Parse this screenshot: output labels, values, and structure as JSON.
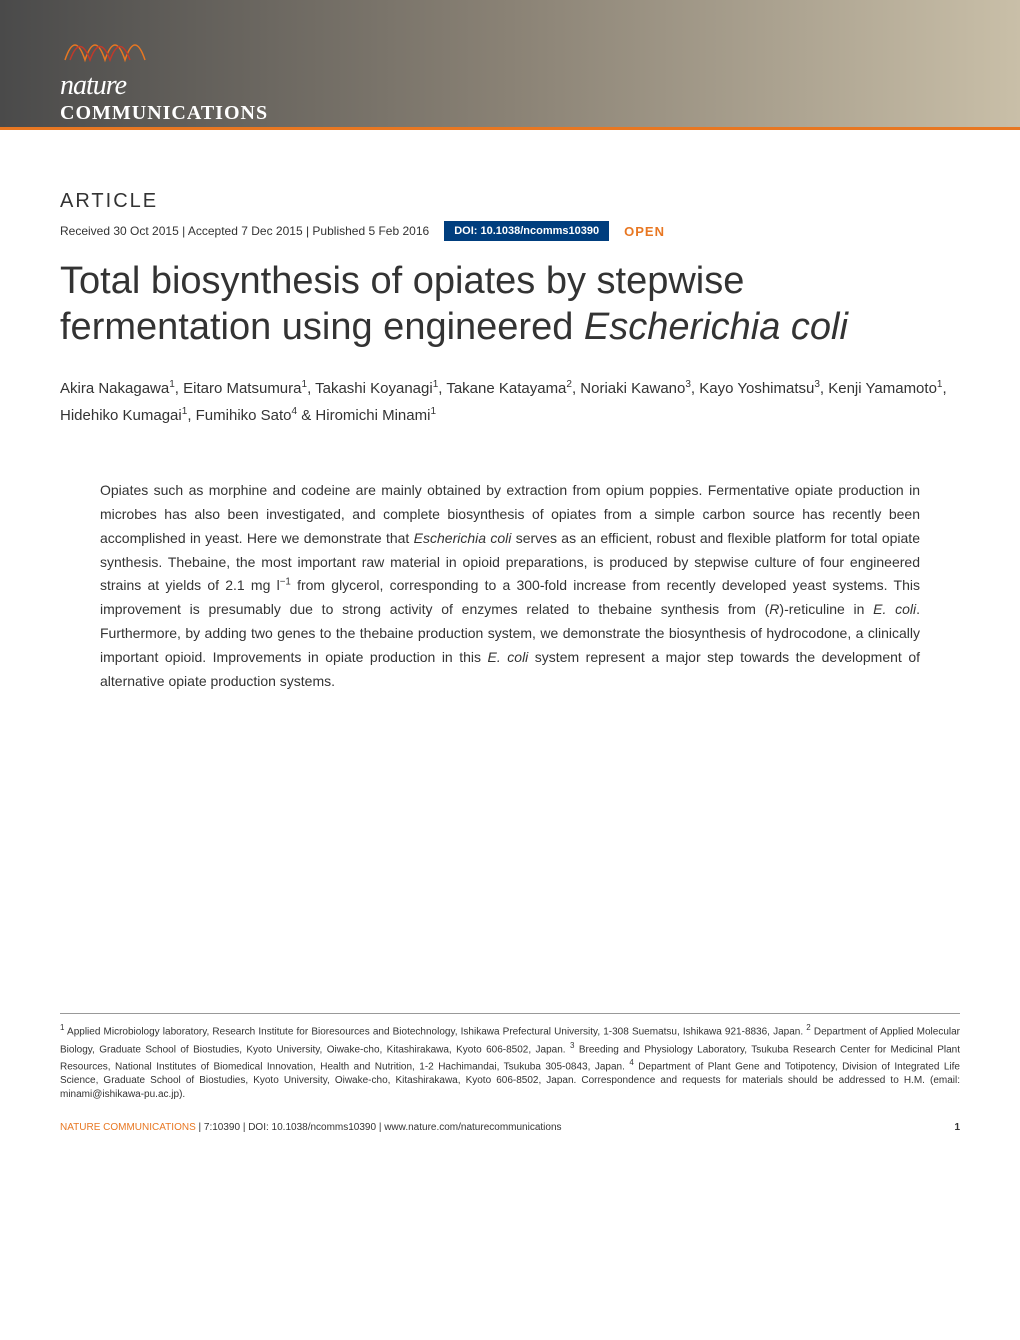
{
  "journal": {
    "logo_nature": "nature",
    "logo_communications": "COMMUNICATIONS"
  },
  "article": {
    "label": "ARTICLE",
    "received": "Received 30 Oct 2015",
    "accepted": "Accepted 7 Dec 2015",
    "published": "Published 5 Feb 2016",
    "doi": "DOI: 10.1038/ncomms10390",
    "open_label": "OPEN",
    "title_line1": "Total biosynthesis of opiates by stepwise",
    "title_line2_pre": "fermentation using engineered ",
    "title_line2_italic": "Escherichia coli",
    "authors_html": "Akira Nakagawa<sup>1</sup>, Eitaro Matsumura<sup>1</sup>, Takashi Koyanagi<sup>1</sup>, Takane Katayama<sup>2</sup>, Noriaki Kawano<sup>3</sup>, Kayo Yoshimatsu<sup>3</sup>, Kenji Yamamoto<sup>1</sup>, Hidehiko Kumagai<sup>1</sup>, Fumihiko Sato<sup>4</sup> & Hiromichi Minami<sup>1</sup>",
    "abstract_part1": "Opiates such as morphine and codeine are mainly obtained by extraction from opium poppies. Fermentative opiate production in microbes has also been investigated, and complete biosynthesis of opiates from a simple carbon source has recently been accomplished in yeast. Here we demonstrate that ",
    "abstract_italic1": "Escherichia coli",
    "abstract_part2": " serves as an efficient, robust and flexible platform for total opiate synthesis. Thebaine, the most important raw material in opioid preparations, is produced by stepwise culture of four engineered strains at yields of 2.1 mg l",
    "abstract_sup1": "−1",
    "abstract_part3": " from glycerol, corresponding to a 300-fold increase from recently developed yeast systems. This improvement is presumably due to strong activity of enzymes related to thebaine synthesis from (",
    "abstract_italic2": "R",
    "abstract_part4": ")-reticuline in ",
    "abstract_italic3": "E. coli",
    "abstract_part5": ". Furthermore, by adding two genes to the thebaine production system, we demonstrate the biosynthesis of hydrocodone, a clinically important opioid. Improvements in opiate production in this ",
    "abstract_italic4": "E. coli",
    "abstract_part6": " system represent a major step towards the development of alternative opiate production systems.",
    "affiliations_html": "<sup>1</sup> Applied Microbiology laboratory, Research Institute for Bioresources and Biotechnology, Ishikawa Prefectural University, 1-308 Suematsu, Ishikawa 921-8836, Japan. <sup>2</sup> Department of Applied Molecular Biology, Graduate School of Biostudies, Kyoto University, Oiwake-cho, Kitashirakawa, Kyoto 606-8502, Japan. <sup>3</sup> Breeding and Physiology Laboratory, Tsukuba Research Center for Medicinal Plant Resources, National Institutes of Biomedical Innovation, Health and Nutrition, 1-2 Hachimandai, Tsukuba 305-0843, Japan. <sup>4</sup> Department of Plant Gene and Totipotency, Division of Integrated Life Science, Graduate School of Biostudies, Kyoto University, Oiwake-cho, Kitashirakawa, Kyoto 606-8502, Japan. Correspondence and requests for materials should be addressed to H.M. (email: minami@ishikawa-pu.ac.jp)."
  },
  "footer": {
    "citation_orange": "NATURE COMMUNICATIONS",
    "citation_black": " | 7:10390 | DOI: 10.1038/ncomms10390 | www.nature.com/naturecommunications",
    "page_number": "1"
  },
  "colors": {
    "orange": "#e87722",
    "doi_blue": "#003e7e",
    "text": "#333333"
  }
}
